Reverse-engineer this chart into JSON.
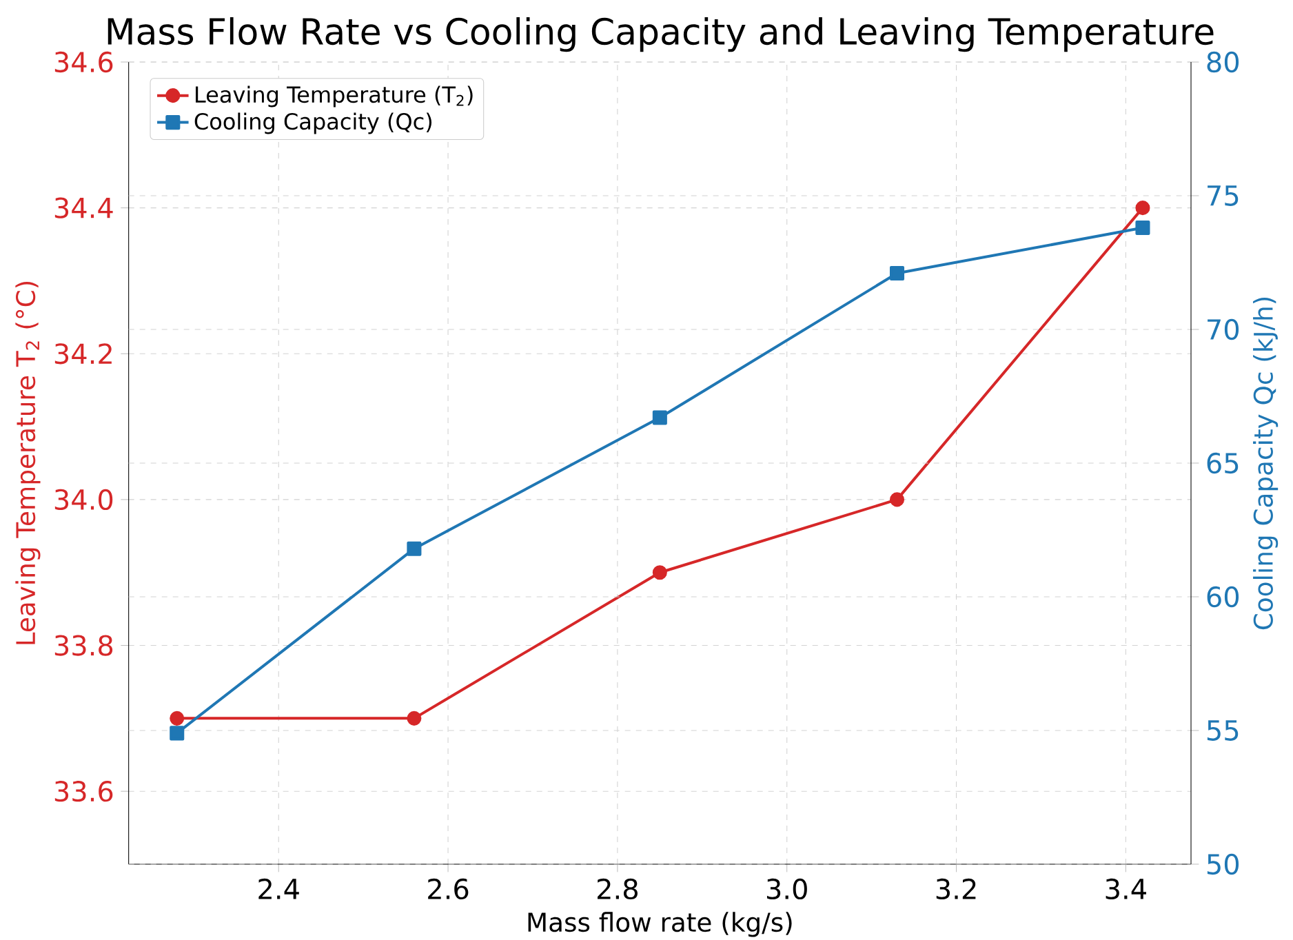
{
  "chart_data": {
    "type": "line",
    "title": "Mass Flow Rate vs Cooling Capacity and Leaving Temperature",
    "xlabel": "Mass flow rate (kg/s)",
    "ylabel": "Leaving Temperature T$_{2}$ (°C)",
    "y2label": "Cooling Capacity Qc (kJ/h)",
    "x": [
      2.28,
      2.56,
      2.85,
      3.13,
      3.42
    ],
    "series": [
      {
        "name": "Leaving Temperature (T$_{2}$)",
        "color": "#d62728",
        "marker": "circle",
        "values": [
          33.7,
          33.7,
          33.9,
          34.0,
          34.4
        ]
      },
      {
        "name": "Cooling Capacity (Qc)",
        "color": "#1f77b4",
        "marker": "square",
        "axis": "y2",
        "values": [
          54.9,
          61.8,
          66.7,
          72.1,
          73.8
        ]
      }
    ],
    "xlim": [
      2.223,
      3.477
    ],
    "xticks": [
      2.4,
      2.6,
      2.8,
      {
        "value": 3,
        "label": "3.0"
      },
      3.2,
      3.4
    ],
    "ylim": [
      33.5,
      34.6
    ],
    "yticks": [
      33.6,
      33.8,
      {
        "value": 34,
        "label": "34.0"
      },
      34.2,
      34.4,
      34.6
    ],
    "y2lim": [
      50,
      80
    ],
    "y2ticks": [
      50,
      55,
      60,
      65,
      70,
      75,
      80
    ],
    "grid": true,
    "legend": "top left",
    "line_style": "solid"
  }
}
